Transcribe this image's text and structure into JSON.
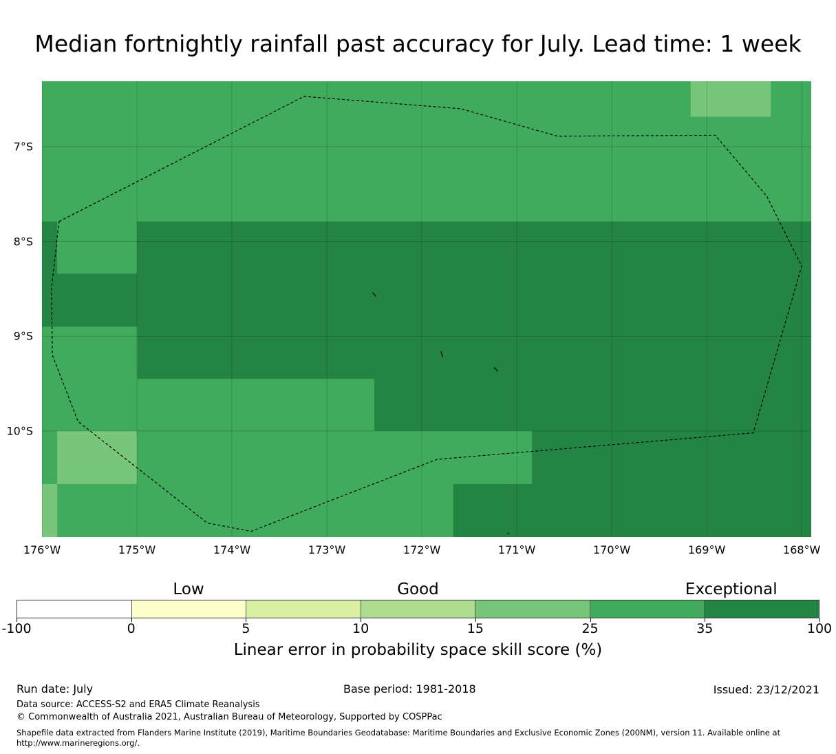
{
  "title": "Median fortnightly rainfall past accuracy for July. Lead time: 1 week",
  "map": {
    "lon_range": [
      -176,
      -167.9
    ],
    "lat_range": [
      -11.12,
      -6.31
    ],
    "lon_ticks": [
      {
        "value": -176,
        "label": "176°W"
      },
      {
        "value": -175,
        "label": "175°W"
      },
      {
        "value": -174,
        "label": "174°W"
      },
      {
        "value": -173,
        "label": "173°W"
      },
      {
        "value": -172,
        "label": "172°W"
      },
      {
        "value": -171,
        "label": "171°W"
      },
      {
        "value": -170,
        "label": "170°W"
      },
      {
        "value": -169,
        "label": "169°W"
      },
      {
        "value": -168,
        "label": "168°W"
      }
    ],
    "lat_ticks": [
      {
        "value": -7,
        "label": "7°S"
      },
      {
        "value": -8,
        "label": "8°S"
      },
      {
        "value": -9,
        "label": "9°S"
      },
      {
        "value": -10,
        "label": "10°S"
      }
    ],
    "skill_cells": [
      {
        "lon": [
          -176,
          -167.9
        ],
        "lat": [
          -7.79,
          -6.31
        ],
        "category": "25-35"
      },
      {
        "lon": [
          -169.17,
          -168.33
        ],
        "lat": [
          -6.68,
          -6.31
        ],
        "category": "15-25"
      },
      {
        "lon": [
          -176,
          -175.84
        ],
        "lat": [
          -8.9,
          -7.79
        ],
        "category": "35-100"
      },
      {
        "lon": [
          -175.84,
          -175
        ],
        "lat": [
          -8.34,
          -7.79
        ],
        "category": "25-35"
      },
      {
        "lon": [
          -175.84,
          -175
        ],
        "lat": [
          -8.9,
          -8.34
        ],
        "category": "35-100"
      },
      {
        "lon": [
          -175,
          -167.9
        ],
        "lat": [
          -9.45,
          -7.79
        ],
        "category": "35-100"
      },
      {
        "lon": [
          -176,
          -175
        ],
        "lat": [
          -10,
          -8.9
        ],
        "category": "25-35"
      },
      {
        "lon": [
          -175,
          -172.5
        ],
        "lat": [
          -10,
          -9.45
        ],
        "category": "25-35"
      },
      {
        "lon": [
          -172.5,
          -167.9
        ],
        "lat": [
          -10,
          -9.45
        ],
        "category": "35-100"
      },
      {
        "lon": [
          -176,
          -175.84
        ],
        "lat": [
          -10.56,
          -10
        ],
        "category": "25-35"
      },
      {
        "lon": [
          -175.84,
          -175
        ],
        "lat": [
          -10.56,
          -10
        ],
        "category": "15-25"
      },
      {
        "lon": [
          -175,
          -170.84
        ],
        "lat": [
          -10.56,
          -10
        ],
        "category": "25-35"
      },
      {
        "lon": [
          -170.84,
          -167.9
        ],
        "lat": [
          -10.56,
          -10
        ],
        "category": "35-100"
      },
      {
        "lon": [
          -176,
          -175.84
        ],
        "lat": [
          -11.12,
          -10.56
        ],
        "category": "15-25"
      },
      {
        "lon": [
          -175.84,
          -171.67
        ],
        "lat": [
          -11.12,
          -10.56
        ],
        "category": "25-35"
      },
      {
        "lon": [
          -171.67,
          -167.9
        ],
        "lat": [
          -11.12,
          -10.56
        ],
        "category": "35-100"
      }
    ],
    "eez_boundary": [
      [
        -175.82,
        -7.79
      ],
      [
        -173.24,
        -6.47
      ],
      [
        -171.59,
        -6.6
      ],
      [
        -170.57,
        -6.89
      ],
      [
        -168.91,
        -6.88
      ],
      [
        -168.37,
        -7.52
      ],
      [
        -168.0,
        -8.26
      ],
      [
        -168.51,
        -10.02
      ],
      [
        -171.84,
        -10.3
      ],
      [
        -173.8,
        -11.06
      ],
      [
        -174.26,
        -10.97
      ],
      [
        -175.62,
        -9.9
      ],
      [
        -175.89,
        -9.2
      ],
      [
        -175.9,
        -8.5
      ],
      [
        -175.82,
        -7.79
      ]
    ],
    "islands": [
      [
        [
          -172.52,
          -8.54
        ],
        [
          -172.48,
          -8.58
        ]
      ],
      [
        [
          -171.8,
          -9.16
        ],
        [
          -171.78,
          -9.22
        ]
      ],
      [
        [
          -171.24,
          -9.33
        ],
        [
          -171.2,
          -9.37
        ]
      ],
      [
        [
          -171.1,
          -11.08
        ],
        [
          -171.08,
          -11.08
        ]
      ]
    ],
    "colors": {
      "25-35": "#41ab5d",
      "15-25": "#78c679",
      "35-100": "#238443"
    }
  },
  "colorbar": {
    "category_labels": [
      {
        "label": "Low",
        "value": 2.5
      },
      {
        "label": "Good",
        "value": 12.5
      },
      {
        "label": "Exceptional",
        "value": 50
      }
    ],
    "ticks": [
      "-100",
      "0",
      "5",
      "10",
      "15",
      "25",
      "35",
      "100"
    ],
    "colors": [
      "#ffffff",
      "#ffffcc",
      "#d9f0a3",
      "#addd8e",
      "#78c679",
      "#41ab5d",
      "#238443"
    ],
    "label": "Linear error in probability space skill score (%)"
  },
  "footer": {
    "run_date": "Run date: July",
    "base_period": "Base period: 1981-2018",
    "issued": "Issued: 23/12/2021",
    "data_source": "Data source: ACCESS-S2 and ERA5 Climate Reanalysis",
    "copyright": "© Commonwealth of Australia 2021, Australian Bureau of Meteorology, Supported by COSPPac",
    "shapefile_line1": "Shapefile data extracted from Flanders Marine Institute (2019), Maritime Boundaries Geodatabase: Maritime Boundaries and Exclusive Economic Zones (200NM), version 11. Available online at",
    "shapefile_line2": "http://www.marineregions.org/."
  }
}
